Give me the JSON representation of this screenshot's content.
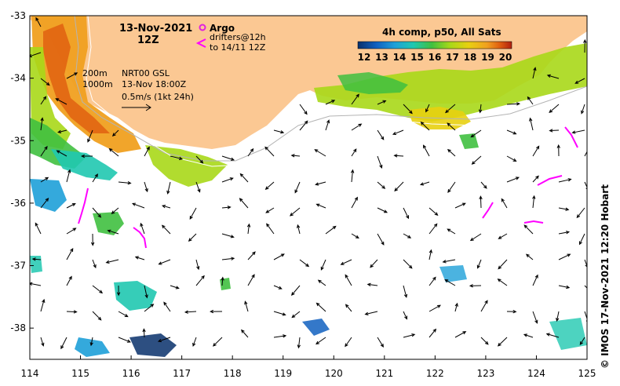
{
  "map": {
    "date_title": "13-Nov-2021",
    "time_title": "12Z",
    "composite_label": "4h comp, p50, All Sats",
    "argo_label": "Argo",
    "drifters_line1": "drifters@12h",
    "drifters_line2": "to 14/11 12Z",
    "depth_200": "200m",
    "depth_1000": "1000m",
    "model_name": "NRT00 GSL",
    "model_time": "13-Nov 18:00Z",
    "scale_label": "0.5m/s (1kt 24h)",
    "credit": "© IMOS 17-Nov-2021 12:20 Hobart",
    "colorbar_ticks": [
      "12",
      "13",
      "14",
      "15",
      "16",
      "17",
      "18",
      "19",
      "20"
    ],
    "lon_ticks": [
      "114",
      "115",
      "116",
      "117",
      "118",
      "119",
      "120",
      "121",
      "122",
      "123",
      "124",
      "125"
    ],
    "lat_ticks": [
      "-33",
      "-34",
      "-35",
      "-36",
      "-37",
      "-38"
    ],
    "extent": {
      "lon": [
        114,
        125
      ],
      "lat": [
        -38.5,
        -33
      ]
    },
    "colors": {
      "land": "#fbc893",
      "ocean": "#ffffff",
      "argo": "#e020e0",
      "drifter": "#ff00ff",
      "isobath": "#b4b4b4",
      "sst_scale": [
        "#08306b",
        "#1060c0",
        "#1ea0d8",
        "#20c8b0",
        "#40c040",
        "#a8d818",
        "#e8d010",
        "#f0a020",
        "#e06010",
        "#b02010"
      ]
    }
  }
}
